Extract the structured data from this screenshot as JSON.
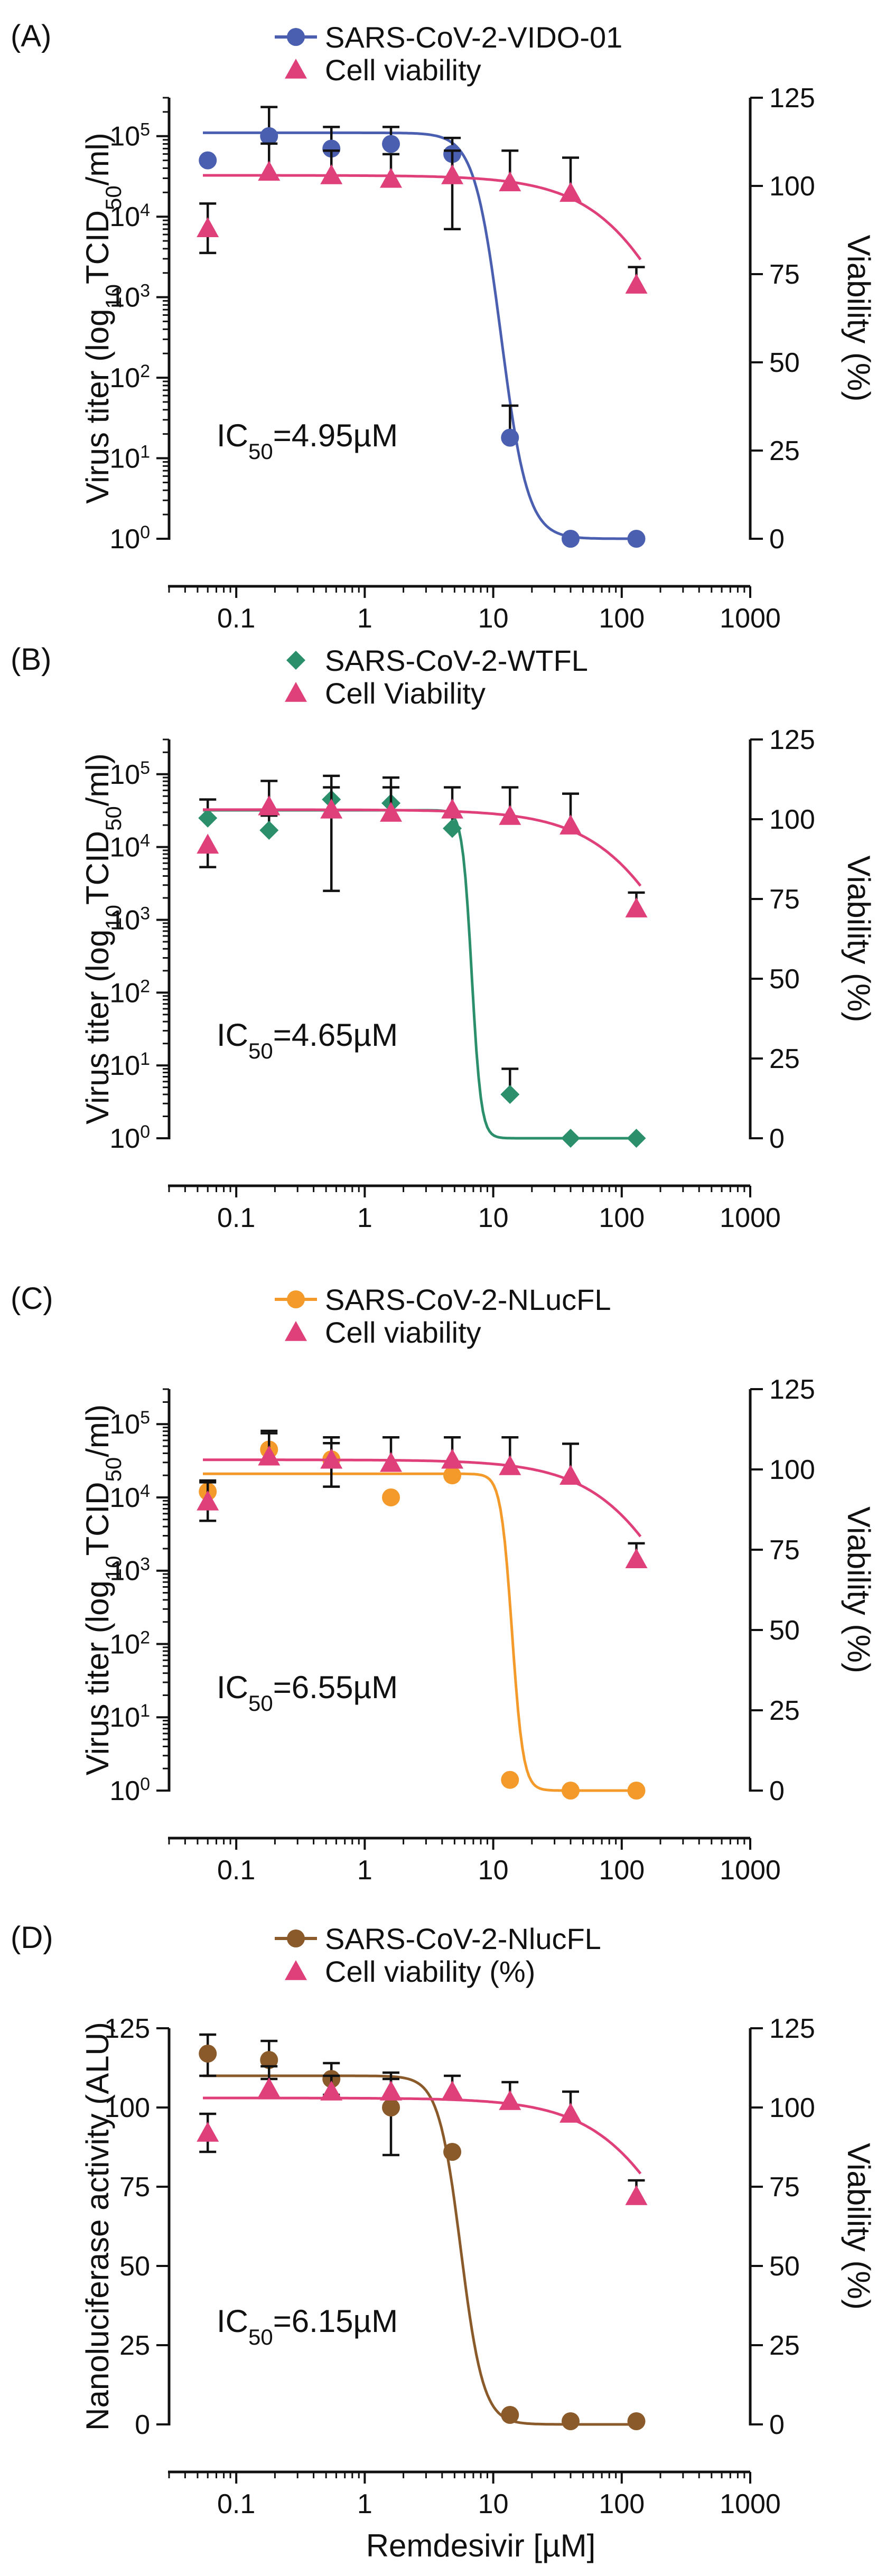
{
  "chart_data": [
    {
      "type": "scatter",
      "panel_label": "(A)",
      "legend_position": "top-center",
      "xscale": "log",
      "xlim": [
        0.03,
        1000
      ],
      "x_ticks": [
        0.1,
        1,
        10,
        100,
        1000
      ],
      "x_tick_labels": [
        "0.1",
        "1",
        "10",
        "100",
        "1000"
      ],
      "xlabel": "",
      "left_axis": {
        "label_parts": [
          "Virus titer (log",
          "10",
          "TCID",
          "50",
          "/ml)"
        ],
        "scale": "log",
        "ylim": [
          1,
          300000
        ],
        "ticks": [
          1,
          10,
          100,
          1000,
          10000,
          100000
        ],
        "tick_bases": [
          "10",
          "10",
          "10",
          "10",
          "10",
          "10"
        ],
        "tick_exps": [
          "0",
          "1",
          "2",
          "3",
          "4",
          "5"
        ]
      },
      "right_axis": {
        "label": "Viability (%)",
        "scale": "linear",
        "ylim": [
          0,
          125
        ],
        "ticks": [
          0,
          25,
          50,
          75,
          100,
          125
        ],
        "tick_labels": [
          "0",
          "25",
          "50",
          "75",
          "100",
          "125"
        ]
      },
      "annotation": {
        "prefix": "IC",
        "sub": "50",
        "suffix": "=4.95µM"
      },
      "series": [
        {
          "name": "SARS-CoV-2-VIDO-01",
          "axis": "left",
          "marker": "circle",
          "color": "#4a5fb0",
          "x": [
            0.06,
            0.18,
            0.55,
            1.6,
            4.8,
            13.5,
            40,
            130
          ],
          "y": [
            50000,
            100000,
            70000,
            80000,
            60000,
            18,
            1,
            1
          ],
          "err_upper": [
            null,
            230000,
            130000,
            130000,
            95000,
            45,
            null,
            null
          ],
          "err_lower": [
            null,
            null,
            null,
            null,
            7000,
            null,
            null,
            null
          ],
          "fit": {
            "top": 110000,
            "bottom": 1,
            "ic50": 11.5,
            "hill": 4.2
          }
        },
        {
          "name": "Cell viability",
          "axis": "right",
          "marker": "triangle",
          "color": "#e0407a",
          "x": [
            0.06,
            0.18,
            0.55,
            1.6,
            4.8,
            13.5,
            40,
            130
          ],
          "y": [
            88,
            104,
            103,
            102,
            103,
            101,
            98,
            72
          ],
          "err_upper": [
            95,
            112,
            110,
            109,
            110,
            110,
            108,
            77
          ],
          "err_lower": [
            81,
            null,
            null,
            null,
            null,
            null,
            null,
            null
          ],
          "fit": {
            "top": 103,
            "bottom": 0,
            "ic50": 380,
            "hill": 1.2
          }
        }
      ]
    },
    {
      "type": "scatter",
      "panel_label": "(B)",
      "legend_position": "top-center",
      "xscale": "log",
      "xlim": [
        0.03,
        1000
      ],
      "x_ticks": [
        0.1,
        1,
        10,
        100,
        1000
      ],
      "x_tick_labels": [
        "0.1",
        "1",
        "10",
        "100",
        "1000"
      ],
      "xlabel": "",
      "left_axis": {
        "label_parts": [
          "Virus titer (log",
          "10",
          "TCID",
          "50",
          "/ml)"
        ],
        "scale": "log",
        "ylim": [
          1,
          300000
        ],
        "ticks": [
          1,
          10,
          100,
          1000,
          10000,
          100000
        ],
        "tick_bases": [
          "10",
          "10",
          "10",
          "10",
          "10",
          "10"
        ],
        "tick_exps": [
          "0",
          "1",
          "2",
          "3",
          "4",
          "5"
        ]
      },
      "right_axis": {
        "label": "Viability (%)",
        "scale": "linear",
        "ylim": [
          0,
          125
        ],
        "ticks": [
          0,
          25,
          50,
          75,
          100,
          125
        ],
        "tick_labels": [
          "0",
          "25",
          "50",
          "75",
          "100",
          "125"
        ]
      },
      "annotation": {
        "prefix": "IC",
        "sub": "50",
        "suffix": "=4.65µM"
      },
      "series": [
        {
          "name": "SARS-CoV-2-WTFL",
          "axis": "left",
          "marker": "diamond",
          "color": "#2a8f6a",
          "x": [
            0.06,
            0.18,
            0.55,
            1.6,
            4.8,
            13.5,
            40,
            130
          ],
          "y": [
            25000,
            17000,
            45000,
            40000,
            18000,
            4,
            1,
            1
          ],
          "err_upper": [
            45000,
            27000,
            95000,
            90000,
            27000,
            9,
            null,
            null
          ],
          "err_lower": [
            null,
            null,
            2500,
            null,
            null,
            null,
            null,
            null
          ],
          "fit": {
            "top": 32000,
            "bottom": 1,
            "ic50": 6.8,
            "hill": 12
          }
        },
        {
          "name": "Cell Viability",
          "axis": "right",
          "marker": "triangle",
          "color": "#e0407a",
          "x": [
            0.06,
            0.18,
            0.55,
            1.6,
            4.8,
            13.5,
            40,
            130
          ],
          "y": [
            92,
            104,
            103,
            102,
            103,
            101,
            98,
            72
          ],
          "err_upper": [
            null,
            112,
            110,
            110,
            110,
            110,
            108,
            77
          ],
          "err_lower": [
            85,
            null,
            null,
            null,
            null,
            null,
            null,
            null
          ],
          "fit": {
            "top": 103,
            "bottom": 0,
            "ic50": 380,
            "hill": 1.2
          }
        }
      ]
    },
    {
      "type": "scatter",
      "panel_label": "(C)",
      "legend_position": "top-center",
      "xscale": "log",
      "xlim": [
        0.03,
        1000
      ],
      "x_ticks": [
        0.1,
        1,
        10,
        100,
        1000
      ],
      "x_tick_labels": [
        "0.1",
        "1",
        "10",
        "100",
        "1000"
      ],
      "xlabel": "",
      "left_axis": {
        "label_parts": [
          "Virus titer (log",
          "10",
          "TCID",
          "50",
          "/ml)"
        ],
        "scale": "log",
        "ylim": [
          1,
          300000
        ],
        "ticks": [
          1,
          10,
          100,
          1000,
          10000,
          100000
        ],
        "tick_bases": [
          "10",
          "10",
          "10",
          "10",
          "10",
          "10"
        ],
        "tick_exps": [
          "0",
          "1",
          "2",
          "3",
          "4",
          "5"
        ]
      },
      "right_axis": {
        "label": "Viability (%)",
        "scale": "linear",
        "ylim": [
          0,
          125
        ],
        "ticks": [
          0,
          25,
          50,
          75,
          100,
          125
        ],
        "tick_labels": [
          "0",
          "25",
          "50",
          "75",
          "100",
          "125"
        ]
      },
      "annotation": {
        "prefix": "IC",
        "sub": "50",
        "suffix": "=6.55µM"
      },
      "series": [
        {
          "name": "SARS-CoV-2-NLucFL",
          "axis": "left",
          "marker": "circle",
          "color": "#f39a2b",
          "x": [
            0.06,
            0.18,
            0.55,
            1.6,
            4.8,
            13.5,
            40,
            130
          ],
          "y": [
            12000,
            45000,
            33000,
            10000,
            20000,
            1.4,
            1,
            1
          ],
          "err_upper": [
            17000,
            75000,
            55000,
            null,
            null,
            null,
            null,
            null
          ],
          "err_lower": [
            null,
            null,
            14000,
            null,
            null,
            null,
            null,
            null
          ],
          "fit": {
            "top": 21000,
            "bottom": 1,
            "ic50": 14,
            "hill": 10
          }
        },
        {
          "name": "Cell viability",
          "axis": "right",
          "marker": "triangle",
          "color": "#e0407a",
          "x": [
            0.06,
            0.18,
            0.55,
            1.6,
            4.8,
            13.5,
            40,
            130
          ],
          "y": [
            90,
            104,
            103,
            102,
            103,
            101,
            98,
            72
          ],
          "err_upper": [
            96,
            112,
            110,
            110,
            110,
            110,
            108,
            77
          ],
          "err_lower": [
            84,
            null,
            null,
            null,
            null,
            null,
            null,
            null
          ],
          "fit": {
            "top": 103,
            "bottom": 0,
            "ic50": 380,
            "hill": 1.2
          }
        }
      ]
    },
    {
      "type": "scatter",
      "panel_label": "(D)",
      "legend_position": "top-center",
      "xscale": "log",
      "xlim": [
        0.03,
        1000
      ],
      "x_ticks": [
        0.1,
        1,
        10,
        100,
        1000
      ],
      "x_tick_labels": [
        "0.1",
        "1",
        "10",
        "100",
        "1000"
      ],
      "xlabel": "Remdesivir [µM]",
      "left_axis": {
        "label": "Nanoluciferase activity (ALU)",
        "scale": "linear",
        "ylim": [
          0,
          125
        ],
        "ticks": [
          0,
          25,
          50,
          75,
          100,
          125
        ],
        "tick_labels": [
          "0",
          "25",
          "50",
          "75",
          "100",
          "125"
        ]
      },
      "right_axis": {
        "label": "Viability (%)",
        "scale": "linear",
        "ylim": [
          0,
          125
        ],
        "ticks": [
          0,
          25,
          50,
          75,
          100,
          125
        ],
        "tick_labels": [
          "0",
          "25",
          "50",
          "75",
          "100",
          "125"
        ]
      },
      "annotation": {
        "prefix": "IC",
        "sub": "50",
        "suffix": "=6.15µM"
      },
      "series": [
        {
          "name": "SARS-CoV-2-NlucFL",
          "axis": "left",
          "marker": "circle",
          "color": "#8b5a2b",
          "x": [
            0.06,
            0.18,
            0.55,
            1.6,
            4.8,
            13.5,
            40,
            130
          ],
          "y": [
            117,
            115,
            109,
            100,
            86,
            3,
            1,
            1
          ],
          "err_upper": [
            123,
            121,
            114,
            109,
            null,
            null,
            null,
            null
          ],
          "err_lower": [
            110,
            109,
            104,
            85,
            null,
            null,
            null,
            null
          ],
          "fit": {
            "top": 110,
            "bottom": 0,
            "ic50": 5.6,
            "hill": 5
          }
        },
        {
          "name": "Cell viability (%)",
          "axis": "right",
          "marker": "triangle",
          "color": "#e0407a",
          "x": [
            0.06,
            0.18,
            0.55,
            1.6,
            4.8,
            13.5,
            40,
            130
          ],
          "y": [
            92,
            106,
            105,
            105,
            105,
            102,
            98,
            72
          ],
          "err_upper": [
            98,
            113,
            110,
            111,
            110,
            108,
            105,
            77
          ],
          "err_lower": [
            86,
            null,
            null,
            null,
            null,
            null,
            null,
            null
          ],
          "fit": {
            "top": 103,
            "bottom": 0,
            "ic50": 380,
            "hill": 1.2
          }
        }
      ]
    }
  ]
}
